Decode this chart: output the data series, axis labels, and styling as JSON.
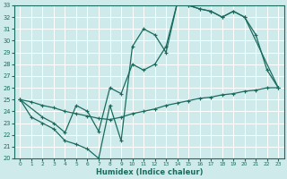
{
  "xlabel": "Humidex (Indice chaleur)",
  "xlim": [
    -0.5,
    23.5
  ],
  "ylim": [
    20,
    33
  ],
  "xticks": [
    0,
    1,
    2,
    3,
    4,
    5,
    6,
    7,
    8,
    9,
    10,
    11,
    12,
    13,
    14,
    15,
    16,
    17,
    18,
    19,
    20,
    21,
    22,
    23
  ],
  "yticks": [
    20,
    21,
    22,
    23,
    24,
    25,
    26,
    27,
    28,
    29,
    30,
    31,
    32,
    33
  ],
  "bg_color": "#ceeaea",
  "line_color": "#1a6b5e",
  "line1_x": [
    0,
    1,
    2,
    3,
    4,
    5,
    6,
    7,
    8,
    9,
    10,
    11,
    12,
    13,
    14,
    15,
    16,
    17,
    18,
    19,
    20,
    21,
    22,
    23
  ],
  "line1_y": [
    25.0,
    23.5,
    23.0,
    22.5,
    21.5,
    21.2,
    20.8,
    20.0,
    24.5,
    21.5,
    29.5,
    31.0,
    30.5,
    29.0,
    33.2,
    33.0,
    32.7,
    32.5,
    32.0,
    32.5,
    32.0,
    30.5,
    27.5,
    26.0
  ],
  "line2_x": [
    0,
    2,
    3,
    4,
    5,
    6,
    7,
    8,
    9,
    10,
    11,
    12,
    13,
    14,
    15,
    16,
    17,
    18,
    19,
    20,
    23
  ],
  "line2_y": [
    25.0,
    23.5,
    23.0,
    22.2,
    24.5,
    24.0,
    22.3,
    26.0,
    25.5,
    28.0,
    27.5,
    28.0,
    29.5,
    33.2,
    33.0,
    32.7,
    32.5,
    32.0,
    32.5,
    32.0,
    26.0
  ],
  "line3_x": [
    0,
    1,
    2,
    3,
    4,
    5,
    6,
    7,
    8,
    9,
    10,
    11,
    12,
    13,
    14,
    15,
    16,
    17,
    18,
    19,
    20,
    21,
    22,
    23
  ],
  "line3_y": [
    25.0,
    24.8,
    24.5,
    24.3,
    24.0,
    23.8,
    23.6,
    23.4,
    23.3,
    23.5,
    23.8,
    24.0,
    24.2,
    24.5,
    24.7,
    24.9,
    25.1,
    25.2,
    25.4,
    25.5,
    25.7,
    25.8,
    26.0,
    26.0
  ]
}
